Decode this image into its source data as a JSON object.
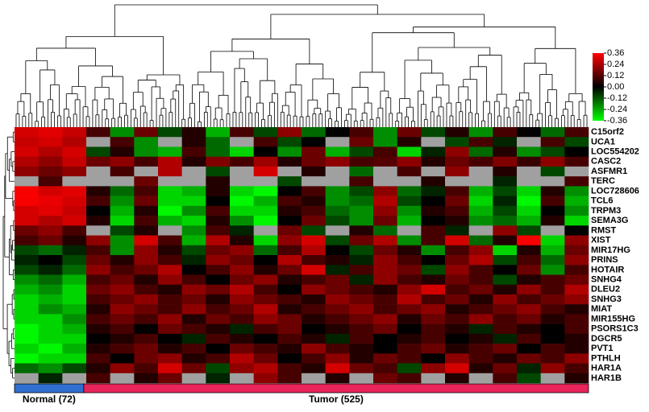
{
  "chart_data": {
    "type": "heatmap",
    "colorscale": [
      "#00ff00",
      "#000000",
      "#ff0000"
    ],
    "null_color": "#a0a0a0",
    "zlim": [
      -0.36,
      0.36
    ],
    "zticks": [
      0.36,
      0.24,
      0.12,
      {
        "value": 0,
        "label": "0.00"
      },
      -0.12,
      -0.24,
      -0.36
    ],
    "groups": [
      {
        "label": "Normal (72)",
        "size": 72,
        "color": "#2f6fd0"
      },
      {
        "label": "Tumor (525)",
        "size": 525,
        "color": "#e8245a"
      }
    ],
    "rows": [
      {
        "label": "C15orf2",
        "values": [
          0.3,
          0.32,
          0.28,
          0.1,
          -0.2,
          0.15,
          -0.1,
          0.05,
          -0.25,
          0.1,
          -0.1,
          0.2,
          -0.15,
          0,
          0.1,
          -0.2,
          0.15,
          -0.1,
          0.05,
          -0.2,
          0.1,
          0,
          -0.15,
          0.1
        ]
      },
      {
        "label": "UCA1",
        "values": [
          0.28,
          0.3,
          0.25,
          null,
          0.1,
          -0.2,
          null,
          0.05,
          -0.15,
          null,
          0.1,
          -0.1,
          0,
          null,
          0.15,
          -0.2,
          0.05,
          null,
          -0.1,
          0.1,
          -0.05,
          null,
          0.1,
          -0.1
        ]
      },
      {
        "label": "LOC554202",
        "values": [
          0.3,
          0.25,
          0.3,
          -0.1,
          0.05,
          -0.2,
          -0.25,
          0.1,
          -0.15,
          -0.3,
          0,
          -0.2,
          0.15,
          -0.25,
          -0.1,
          0.1,
          -0.3,
          -0.05,
          0.2,
          -0.15,
          0.05,
          -0.2,
          -0.1,
          0
        ]
      },
      {
        "label": "CASC2",
        "values": [
          0.25,
          0.2,
          0.28,
          0.15,
          0.2,
          0.1,
          0.25,
          0.05,
          0.18,
          0.1,
          0.22,
          0.05,
          0.15,
          0.2,
          0.1,
          0.12,
          0.2,
          0.05,
          0.15,
          0.1,
          0.18,
          0.08,
          0.2,
          0.1
        ]
      },
      {
        "label": "ASFMR1",
        "values": [
          0.2,
          0.15,
          0.2,
          null,
          0.1,
          null,
          0.25,
          null,
          -0.1,
          null,
          0.3,
          null,
          0.05,
          null,
          -0.15,
          null,
          0.1,
          null,
          0.2,
          null,
          0.05,
          null,
          -0.1,
          null
        ]
      },
      {
        "label": "TERC",
        "values": [
          null,
          0.1,
          null,
          null,
          null,
          0.15,
          null,
          null,
          0.05,
          null,
          null,
          -0.1,
          null,
          null,
          0.1,
          null,
          null,
          0.05,
          null,
          null,
          -0.05,
          null,
          null,
          0.1
        ]
      },
      {
        "label": "LOC728606",
        "values": [
          0.35,
          0.3,
          0.32,
          0.05,
          -0.15,
          0.1,
          -0.3,
          -0.25,
          0.05,
          -0.3,
          -0.35,
          0,
          0.1,
          -0.2,
          -0.1,
          0.2,
          -0.15,
          -0.05,
          0.1,
          -0.25,
          -0.1,
          -0.3,
          0.05,
          -0.2
        ]
      },
      {
        "label": "TCL6",
        "values": [
          0.35,
          0.33,
          0.3,
          0.1,
          -0.2,
          0.15,
          -0.3,
          -0.3,
          0,
          -0.35,
          -0.25,
          0.1,
          0.05,
          -0.2,
          -0.15,
          0.25,
          -0.1,
          0,
          0.15,
          -0.3,
          -0.05,
          -0.35,
          0.1,
          -0.25
        ]
      },
      {
        "label": "TRPM3",
        "values": [
          0.3,
          0.32,
          0.28,
          0,
          -0.25,
          0.05,
          -0.35,
          -0.2,
          0.1,
          -0.3,
          -0.3,
          0.05,
          0.1,
          -0.15,
          -0.2,
          0.2,
          -0.2,
          0.05,
          0.1,
          -0.25,
          -0.1,
          -0.3,
          0,
          -0.2
        ]
      },
      {
        "label": "SEMA3G",
        "values": [
          0.3,
          0.25,
          0.3,
          0.05,
          -0.3,
          0.1,
          -0.25,
          -0.3,
          0.05,
          -0.2,
          -0.35,
          0,
          0.15,
          -0.1,
          -0.2,
          0.15,
          -0.25,
          0,
          0.05,
          -0.2,
          -0.15,
          -0.25,
          0.05,
          -0.3
        ]
      },
      {
        "label": "RMST",
        "values": [
          0.15,
          0.2,
          0.1,
          null,
          -0.1,
          0.05,
          null,
          -0.2,
          0.1,
          -0.05,
          null,
          0.15,
          -0.1,
          null,
          0.05,
          -0.15,
          null,
          0.1,
          -0.05,
          null,
          0.2,
          -0.1,
          null,
          0
        ]
      },
      {
        "label": "XIST",
        "values": [
          0.1,
          0.15,
          0.05,
          0.2,
          -0.2,
          0.3,
          0.1,
          -0.25,
          0.25,
          0.05,
          -0.3,
          0.2,
          0.3,
          -0.1,
          0.15,
          0.25,
          -0.2,
          0.1,
          0.3,
          -0.15,
          0.05,
          0.35,
          -0.3,
          0.2
        ]
      },
      {
        "label": "MIR17HG",
        "values": [
          -0.1,
          -0.15,
          -0.05,
          0.1,
          -0.2,
          0.2,
          0.05,
          -0.1,
          0.15,
          0.2,
          -0.15,
          0.1,
          0.25,
          0,
          -0.1,
          0.15,
          0.05,
          -0.2,
          0.1,
          0.2,
          -0.3,
          0.05,
          -0.25,
          0.15
        ]
      },
      {
        "label": "PRINS",
        "values": [
          -0.05,
          0,
          -0.1,
          0.15,
          0.05,
          0.2,
          0.1,
          -0.05,
          0.2,
          0.15,
          0,
          0.25,
          0.1,
          0.05,
          -0.05,
          0.2,
          0.1,
          0,
          0.15,
          0.25,
          -0.1,
          0.1,
          -0.15,
          0.2
        ]
      },
      {
        "label": "HOTAIR",
        "values": [
          -0.1,
          -0.05,
          -0.15,
          0.2,
          0.1,
          0.15,
          0.25,
          0,
          0.1,
          0.2,
          0.05,
          0.15,
          0.3,
          -0.05,
          0.1,
          0.2,
          0.15,
          -0.1,
          0.2,
          0.1,
          0,
          0.15,
          -0.2,
          0.1
        ]
      },
      {
        "label": "SNHG4",
        "values": [
          -0.2,
          -0.15,
          -0.25,
          0.1,
          0.15,
          0.05,
          0.2,
          0.1,
          0,
          0.15,
          0.2,
          0.05,
          0.1,
          0.15,
          -0.05,
          0.2,
          0.1,
          0.05,
          0.15,
          0.1,
          -0.1,
          0.05,
          0.1,
          0.15
        ]
      },
      {
        "label": "DLEU2",
        "values": [
          -0.25,
          -0.2,
          -0.3,
          0.15,
          0.2,
          0.1,
          0.05,
          0.2,
          0.15,
          0.25,
          0.1,
          0,
          0.2,
          0.15,
          0.1,
          0.05,
          0.2,
          0.3,
          0.1,
          0.15,
          0.05,
          0.2,
          0.1,
          0.25
        ]
      },
      {
        "label": "SNHG3",
        "values": [
          -0.3,
          -0.25,
          -0.3,
          0.1,
          0.15,
          0.2,
          0.1,
          0.15,
          0.05,
          0.2,
          0.15,
          0.1,
          0.05,
          0.2,
          0.15,
          0.1,
          0.25,
          0.1,
          0.15,
          0.05,
          0.2,
          0.1,
          0.15,
          0.2
        ]
      },
      {
        "label": "MIAT",
        "values": [
          -0.3,
          -0.2,
          -0.25,
          0.05,
          0.2,
          0.15,
          0.1,
          0.2,
          0.1,
          0.15,
          0.25,
          0.05,
          0.1,
          0.15,
          0.2,
          0.1,
          0.15,
          0.2,
          0.05,
          0.1,
          0.15,
          0.2,
          0.1,
          0.05
        ]
      },
      {
        "label": "MIR155HG",
        "values": [
          -0.3,
          -0.3,
          -0.2,
          0.1,
          0.15,
          0.1,
          0.2,
          0.05,
          0.15,
          0.1,
          0.2,
          0.15,
          0.05,
          0.1,
          0.15,
          0.2,
          0.05,
          0.15,
          0.1,
          0.2,
          0.1,
          0.15,
          0.05,
          0.1
        ]
      },
      {
        "label": "PSORS1C3",
        "values": [
          -0.35,
          -0.3,
          -0.25,
          0.05,
          0.1,
          0,
          0.15,
          0.1,
          0.05,
          -0.05,
          0.1,
          0.15,
          0,
          0.05,
          0.1,
          0.15,
          0,
          0.1,
          0.05,
          -0.05,
          0.1,
          0.05,
          0,
          0.1
        ]
      },
      {
        "label": "DGCR5",
        "values": [
          -0.35,
          -0.3,
          -0.3,
          0,
          0.05,
          0.1,
          0,
          -0.05,
          0.1,
          0.05,
          0,
          0.1,
          0.05,
          -0.05,
          0.1,
          0,
          0.05,
          0.1,
          0,
          0.05,
          -0.05,
          0.1,
          0,
          0.05
        ]
      },
      {
        "label": "PVT1",
        "values": [
          -0.3,
          -0.35,
          -0.25,
          0.05,
          0.1,
          0.15,
          0.05,
          0.1,
          0,
          0.15,
          0.1,
          0.05,
          0.2,
          0.1,
          0.05,
          0,
          0.1,
          0.15,
          0.05,
          0.1,
          0.15,
          0,
          0.1,
          0.05
        ]
      },
      {
        "label": "PTHLH",
        "values": [
          -0.35,
          -0.3,
          -0.3,
          0.1,
          0,
          0.15,
          0.2,
          0.05,
          0.1,
          0.25,
          0.15,
          0,
          0.1,
          0.2,
          0.05,
          0.15,
          0.1,
          0,
          0.2,
          0.1,
          0.05,
          0.15,
          0.1,
          0.2
        ]
      },
      {
        "label": "HAR1A",
        "values": [
          -0.15,
          -0.2,
          -0.1,
          0.05,
          0.2,
          0.1,
          0.3,
          0.15,
          -0.1,
          0.2,
          0.25,
          0.1,
          0.05,
          0.3,
          0.15,
          0.1,
          -0.1,
          0.2,
          0.3,
          0.05,
          0.15,
          -0.05,
          0.2,
          0.1
        ]
      },
      {
        "label": "HAR1B",
        "values": [
          null,
          -0.05,
          null,
          0.1,
          null,
          0.05,
          0.15,
          null,
          -0.05,
          null,
          0.2,
          0.1,
          null,
          0.05,
          null,
          0.15,
          0.1,
          null,
          0.05,
          null,
          0.1,
          -0.1,
          null,
          0.05
        ]
      }
    ]
  }
}
